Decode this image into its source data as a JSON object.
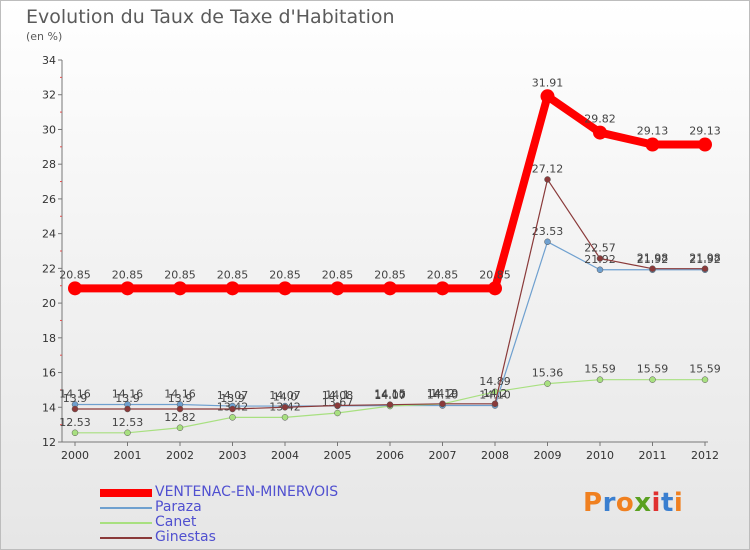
{
  "chart_data": {
    "type": "line",
    "title": "Evolution du Taux de Taxe d'Habitation",
    "unit_label": "(en %)",
    "x": [
      "2000",
      "2001",
      "2002",
      "2003",
      "2004",
      "2005",
      "2006",
      "2007",
      "2008",
      "2009",
      "2010",
      "2011",
      "2012"
    ],
    "ylim": [
      12,
      34
    ],
    "yticks": [
      12,
      14,
      16,
      18,
      20,
      22,
      24,
      26,
      28,
      30,
      32,
      34
    ],
    "grid": false,
    "legend_position": "bottom-left",
    "series": [
      {
        "name": "VENTENAC-EN-MINERVOIS",
        "color": "#ff0000",
        "thick": true,
        "values": [
          20.85,
          20.85,
          20.85,
          20.85,
          20.85,
          20.85,
          20.85,
          20.85,
          20.85,
          31.91,
          29.82,
          29.13,
          29.13
        ],
        "labels": [
          "20.85",
          "20.85",
          "20.85",
          "20.85",
          "20.85",
          "20.85",
          "20.85",
          "20.85",
          "20.85",
          "31.91",
          "29.82",
          "29.13",
          "29.13"
        ]
      },
      {
        "name": "Paraza",
        "color": "#6fa0cf",
        "values": [
          14.16,
          14.16,
          14.16,
          14.07,
          14.07,
          14.08,
          14.1,
          14.1,
          14.1,
          23.53,
          21.92,
          21.92,
          21.92
        ],
        "labels": [
          "14.16",
          "14.16",
          "14.16",
          "14.07",
          "14.07",
          "14.08",
          "14.10",
          "14.10",
          "14.10",
          "23.53",
          "21.92",
          "21.92",
          "21.92"
        ]
      },
      {
        "name": "Canet",
        "color": "#a8e080",
        "values": [
          12.53,
          12.53,
          12.82,
          13.42,
          13.42,
          13.67,
          14.07,
          14.19,
          14.89,
          15.36,
          15.59,
          15.59,
          15.59
        ],
        "labels": [
          "12.53",
          "12.53",
          "12.82",
          "13.42",
          "13.42",
          "13.67",
          "14.07",
          "14.19",
          "14.89",
          "15.36",
          "15.59",
          "15.59",
          "15.59"
        ]
      },
      {
        "name": "Ginestas",
        "color": "#8a3a3a",
        "values": [
          13.9,
          13.9,
          13.9,
          13.9,
          14.0,
          14.1,
          14.15,
          14.2,
          14.2,
          27.12,
          22.57,
          21.98,
          21.98
        ],
        "labels": [
          "13.9",
          "13.9",
          "13.9",
          "13.9",
          "14.0",
          "14.1",
          "14.15",
          "14.2",
          "14.2",
          "27.12",
          "22.57",
          "21.98",
          "21.98"
        ]
      }
    ]
  },
  "logo": {
    "text": "Proxiti",
    "colors": [
      "#f08020",
      "#3a7fd0",
      "#f08020",
      "#5aa020",
      "#e03030",
      "#3a7fd0",
      "#f08020"
    ]
  }
}
